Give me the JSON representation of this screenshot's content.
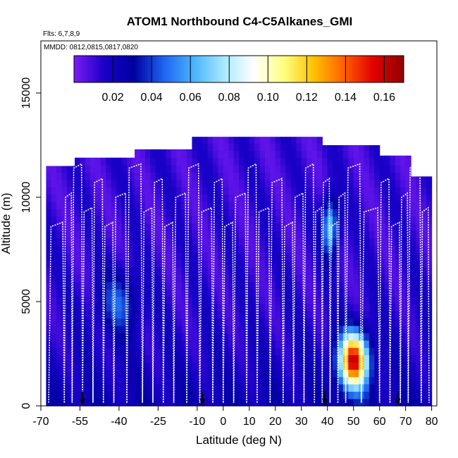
{
  "chart_data": {
    "type": "heatmap",
    "title": "ATOM1 Northbound C4-C5Alkanes_GMI",
    "flights_note": "Flts: 6,7,8,9",
    "dates_note": "MMDD: 0812,0815,0817,0820",
    "xlabel": "Latitude (deg N)",
    "ylabel": "Altitude (m)",
    "xlim": [
      -70,
      82
    ],
    "ylim": [
      0,
      17500
    ],
    "x_ticks": [
      -70,
      -55,
      -40,
      -25,
      -10,
      0,
      10,
      20,
      30,
      40,
      50,
      60,
      70,
      80
    ],
    "y_ticks": [
      0,
      5000,
      10000,
      15000
    ],
    "colorbar": {
      "ticks": [
        0.02,
        0.04,
        0.06,
        0.08,
        0.1,
        0.12,
        0.14,
        0.16
      ],
      "tick_labels": [
        "0.02",
        "0.04",
        "0.06",
        "0.08",
        "0.10",
        "0.12",
        "0.14",
        "0.16"
      ],
      "range": [
        0.0,
        0.17
      ],
      "colors": [
        "#7b1cf5",
        "#1a00c8",
        "#0000a0",
        "#1e64f0",
        "#4ab4ff",
        "#a8e8ff",
        "#ffffff",
        "#ffff80",
        "#ffc000",
        "#ff6000",
        "#e00000",
        "#900000"
      ]
    },
    "curtain_top_m": [
      {
        "lat_range": [
          -68,
          -57
        ],
        "altitude": 11500
      },
      {
        "lat_range": [
          -57,
          -34
        ],
        "altitude": 11900
      },
      {
        "lat_range": [
          -34,
          -12
        ],
        "altitude": 12300
      },
      {
        "lat_range": [
          -12,
          38
        ],
        "altitude": 12900
      },
      {
        "lat_range": [
          38,
          60
        ],
        "altitude": 12500
      },
      {
        "lat_range": [
          60,
          72
        ],
        "altitude": 12000
      },
      {
        "lat_range": [
          72,
          80
        ],
        "altitude": 11000
      }
    ],
    "hotspot": {
      "lat_range": [
        46,
        58
      ],
      "alt_range": [
        1200,
        3200
      ],
      "peak_value": 0.16,
      "peak_lat": 50,
      "peak_alt": 2200
    },
    "secondary_high": {
      "lat_range": [
        36,
        46
      ],
      "alt_range": [
        7000,
        10200
      ],
      "value": 0.07
    },
    "flight_track_profiles_lat": [
      -67,
      -61,
      -58,
      -54,
      -50,
      -46,
      -42,
      -37,
      -31,
      -27,
      -23,
      -19,
      -14,
      -9,
      -4,
      0,
      4,
      9,
      13,
      18,
      23,
      27,
      31,
      35,
      38,
      41,
      44,
      47,
      53,
      60,
      64,
      68,
      71,
      76,
      79
    ],
    "arrow_markers_lat": [
      -54,
      -8,
      39,
      67
    ]
  }
}
